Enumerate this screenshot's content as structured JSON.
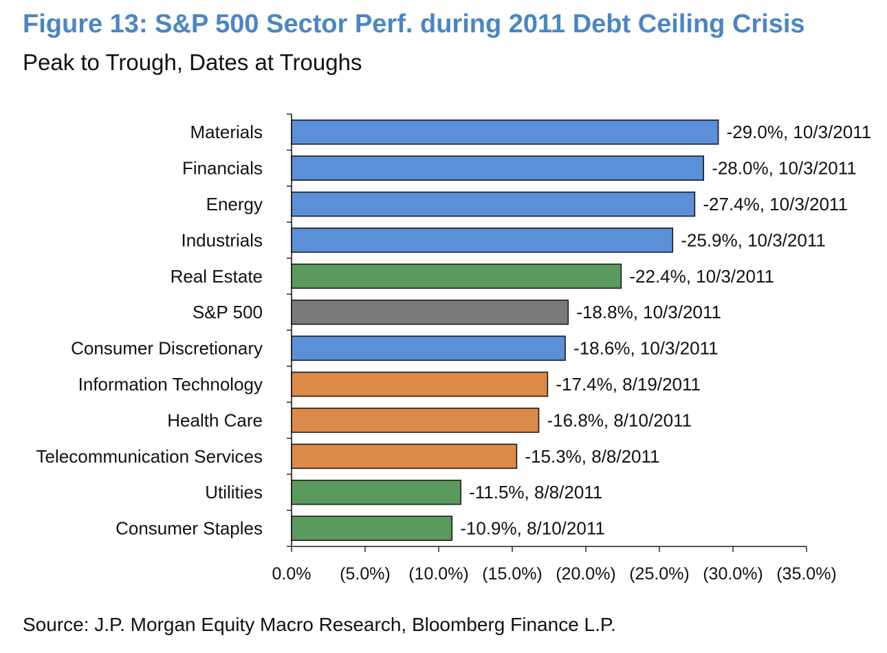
{
  "chart_data": {
    "type": "bar",
    "orientation": "horizontal",
    "title": "Figure 13: S&P 500 Sector Perf. during 2011 Debt Ceiling Crisis",
    "subtitle": "Peak to Trough, Dates at Troughs",
    "source": "Source: J.P. Morgan Equity Macro Research, Bloomberg Finance L.P.",
    "xlabel": "",
    "ylabel": "",
    "xlim": [
      0,
      -35
    ],
    "x_ticks": [
      0,
      -5,
      -10,
      -15,
      -20,
      -25,
      -30,
      -35
    ],
    "x_tick_labels": [
      "0.0%",
      "(5.0%)",
      "(10.0%)",
      "(15.0%)",
      "(20.0%)",
      "(25.0%)",
      "(30.0%)",
      "(35.0%)"
    ],
    "grid": false,
    "legend": "none",
    "colors": {
      "blue": "#5b8fd8",
      "green": "#5a9a5e",
      "gray": "#7a7a7a",
      "orange": "#dc8a48",
      "bar_border": "#1a1a1a"
    },
    "categories": [
      "Materials",
      "Financials",
      "Energy",
      "Industrials",
      "Real Estate",
      "S&P 500",
      "Consumer Discretionary",
      "Information Technology",
      "Health Care",
      "Telecommunication Services",
      "Utilities",
      "Consumer Staples"
    ],
    "values": [
      -29.0,
      -28.0,
      -27.4,
      -25.9,
      -22.4,
      -18.8,
      -18.6,
      -17.4,
      -16.8,
      -15.3,
      -11.5,
      -10.9
    ],
    "trough_dates": [
      "10/3/2011",
      "10/3/2011",
      "10/3/2011",
      "10/3/2011",
      "10/3/2011",
      "10/3/2011",
      "10/3/2011",
      "8/19/2011",
      "8/10/2011",
      "8/8/2011",
      "8/8/2011",
      "8/10/2011"
    ],
    "data_labels": [
      "-29.0%, 10/3/2011",
      "-28.0%, 10/3/2011",
      "-27.4%, 10/3/2011",
      "-25.9%, 10/3/2011",
      "-22.4%, 10/3/2011",
      "-18.8%, 10/3/2011",
      "-18.6%, 10/3/2011",
      "-17.4%, 8/19/2011",
      "-16.8%, 8/10/2011",
      "-15.3%, 8/8/2011",
      "-11.5%, 8/8/2011",
      "-10.9%, 8/10/2011"
    ],
    "bar_colors": [
      "blue",
      "blue",
      "blue",
      "blue",
      "green",
      "gray",
      "blue",
      "orange",
      "orange",
      "orange",
      "green",
      "green"
    ]
  }
}
